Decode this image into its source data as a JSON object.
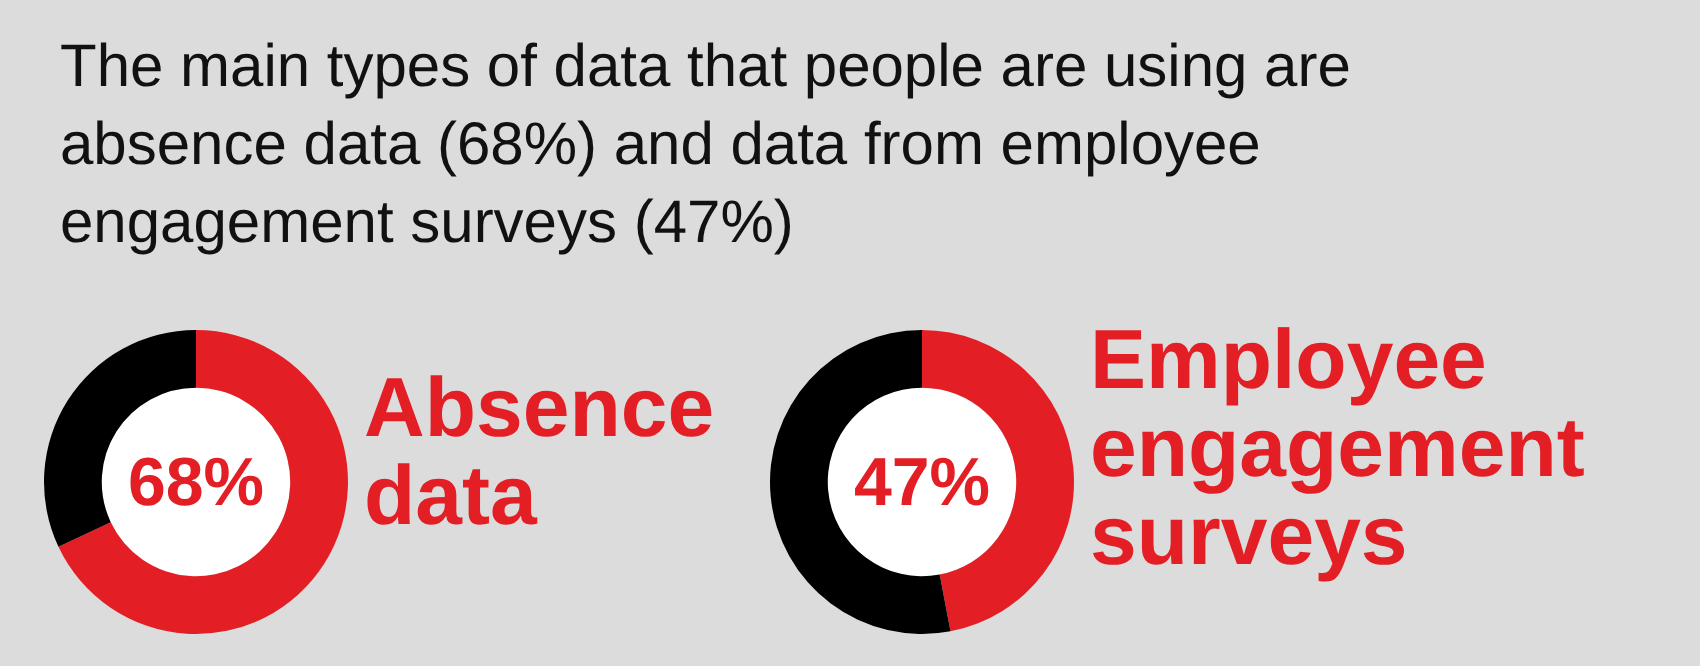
{
  "chart_data": [
    {
      "type": "donut",
      "title": "The main types of data that people are using are absence data (68%) and data from employee engagement surveys (47%)",
      "categories": [
        "Absence data",
        null
      ],
      "values": [
        68,
        32
      ],
      "colors": [
        "#e31e24",
        "#000000"
      ],
      "value_labels": [
        "68%",
        null
      ]
    },
    {
      "type": "donut",
      "categories": [
        "Employee engagement surveys",
        null
      ],
      "values": [
        47,
        53
      ],
      "colors": [
        "#e31e24",
        "#000000"
      ],
      "value_labels": [
        "47%",
        null
      ]
    }
  ]
}
